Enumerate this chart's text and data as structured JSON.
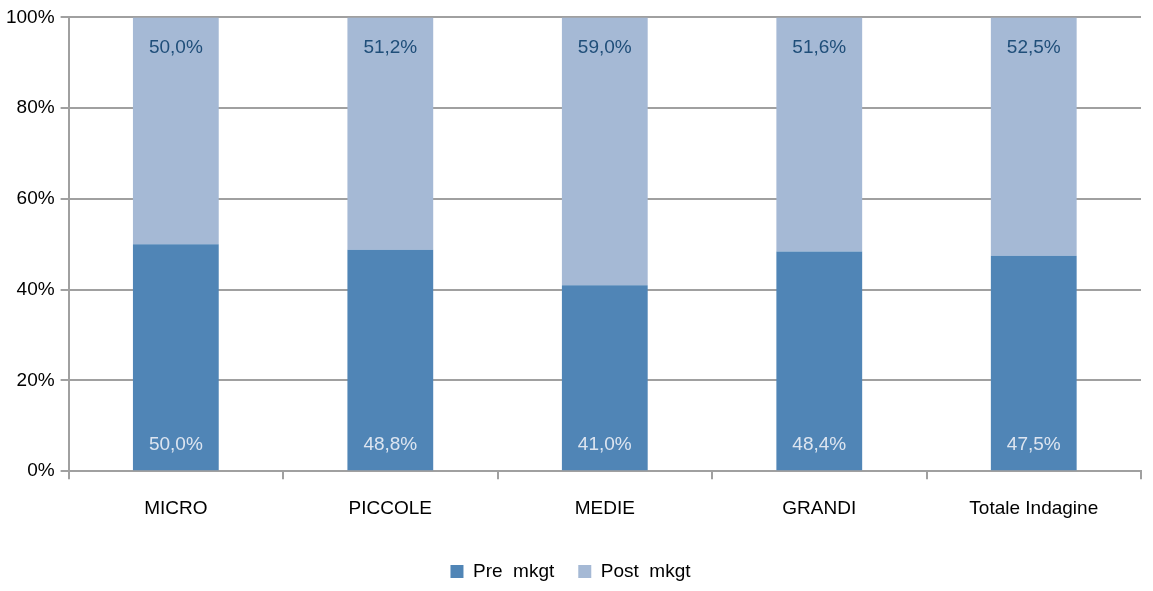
{
  "chart_data": {
    "type": "bar",
    "stacked": true,
    "categories": [
      "MICRO",
      "PICCOLE",
      "MEDIE",
      "GRANDI",
      "Totale Indagine"
    ],
    "series": [
      {
        "name": "Pre  mkgt",
        "color": "#5085b6",
        "values": [
          50.0,
          48.8,
          41.0,
          48.4,
          47.5
        ],
        "value_labels": [
          "50,0%",
          "48,8%",
          "41,0%",
          "48,4%",
          "47,5%"
        ]
      },
      {
        "name": "Post  mkgt",
        "color": "#a5b9d5",
        "values": [
          50.0,
          51.2,
          59.0,
          51.6,
          52.5
        ],
        "value_labels": [
          "50,0%",
          "51,2%",
          "59,0%",
          "51,6%",
          "52,5%"
        ]
      }
    ],
    "ylim": [
      0,
      100
    ],
    "yticks": [
      {
        "value": 0,
        "label": "0%"
      },
      {
        "value": 20,
        "label": "20%"
      },
      {
        "value": 40,
        "label": "40%"
      },
      {
        "value": 60,
        "label": "60%"
      },
      {
        "value": 80,
        "label": "80%"
      },
      {
        "value": 100,
        "label": "100%"
      }
    ],
    "grid": "y",
    "legend": "bottom"
  }
}
